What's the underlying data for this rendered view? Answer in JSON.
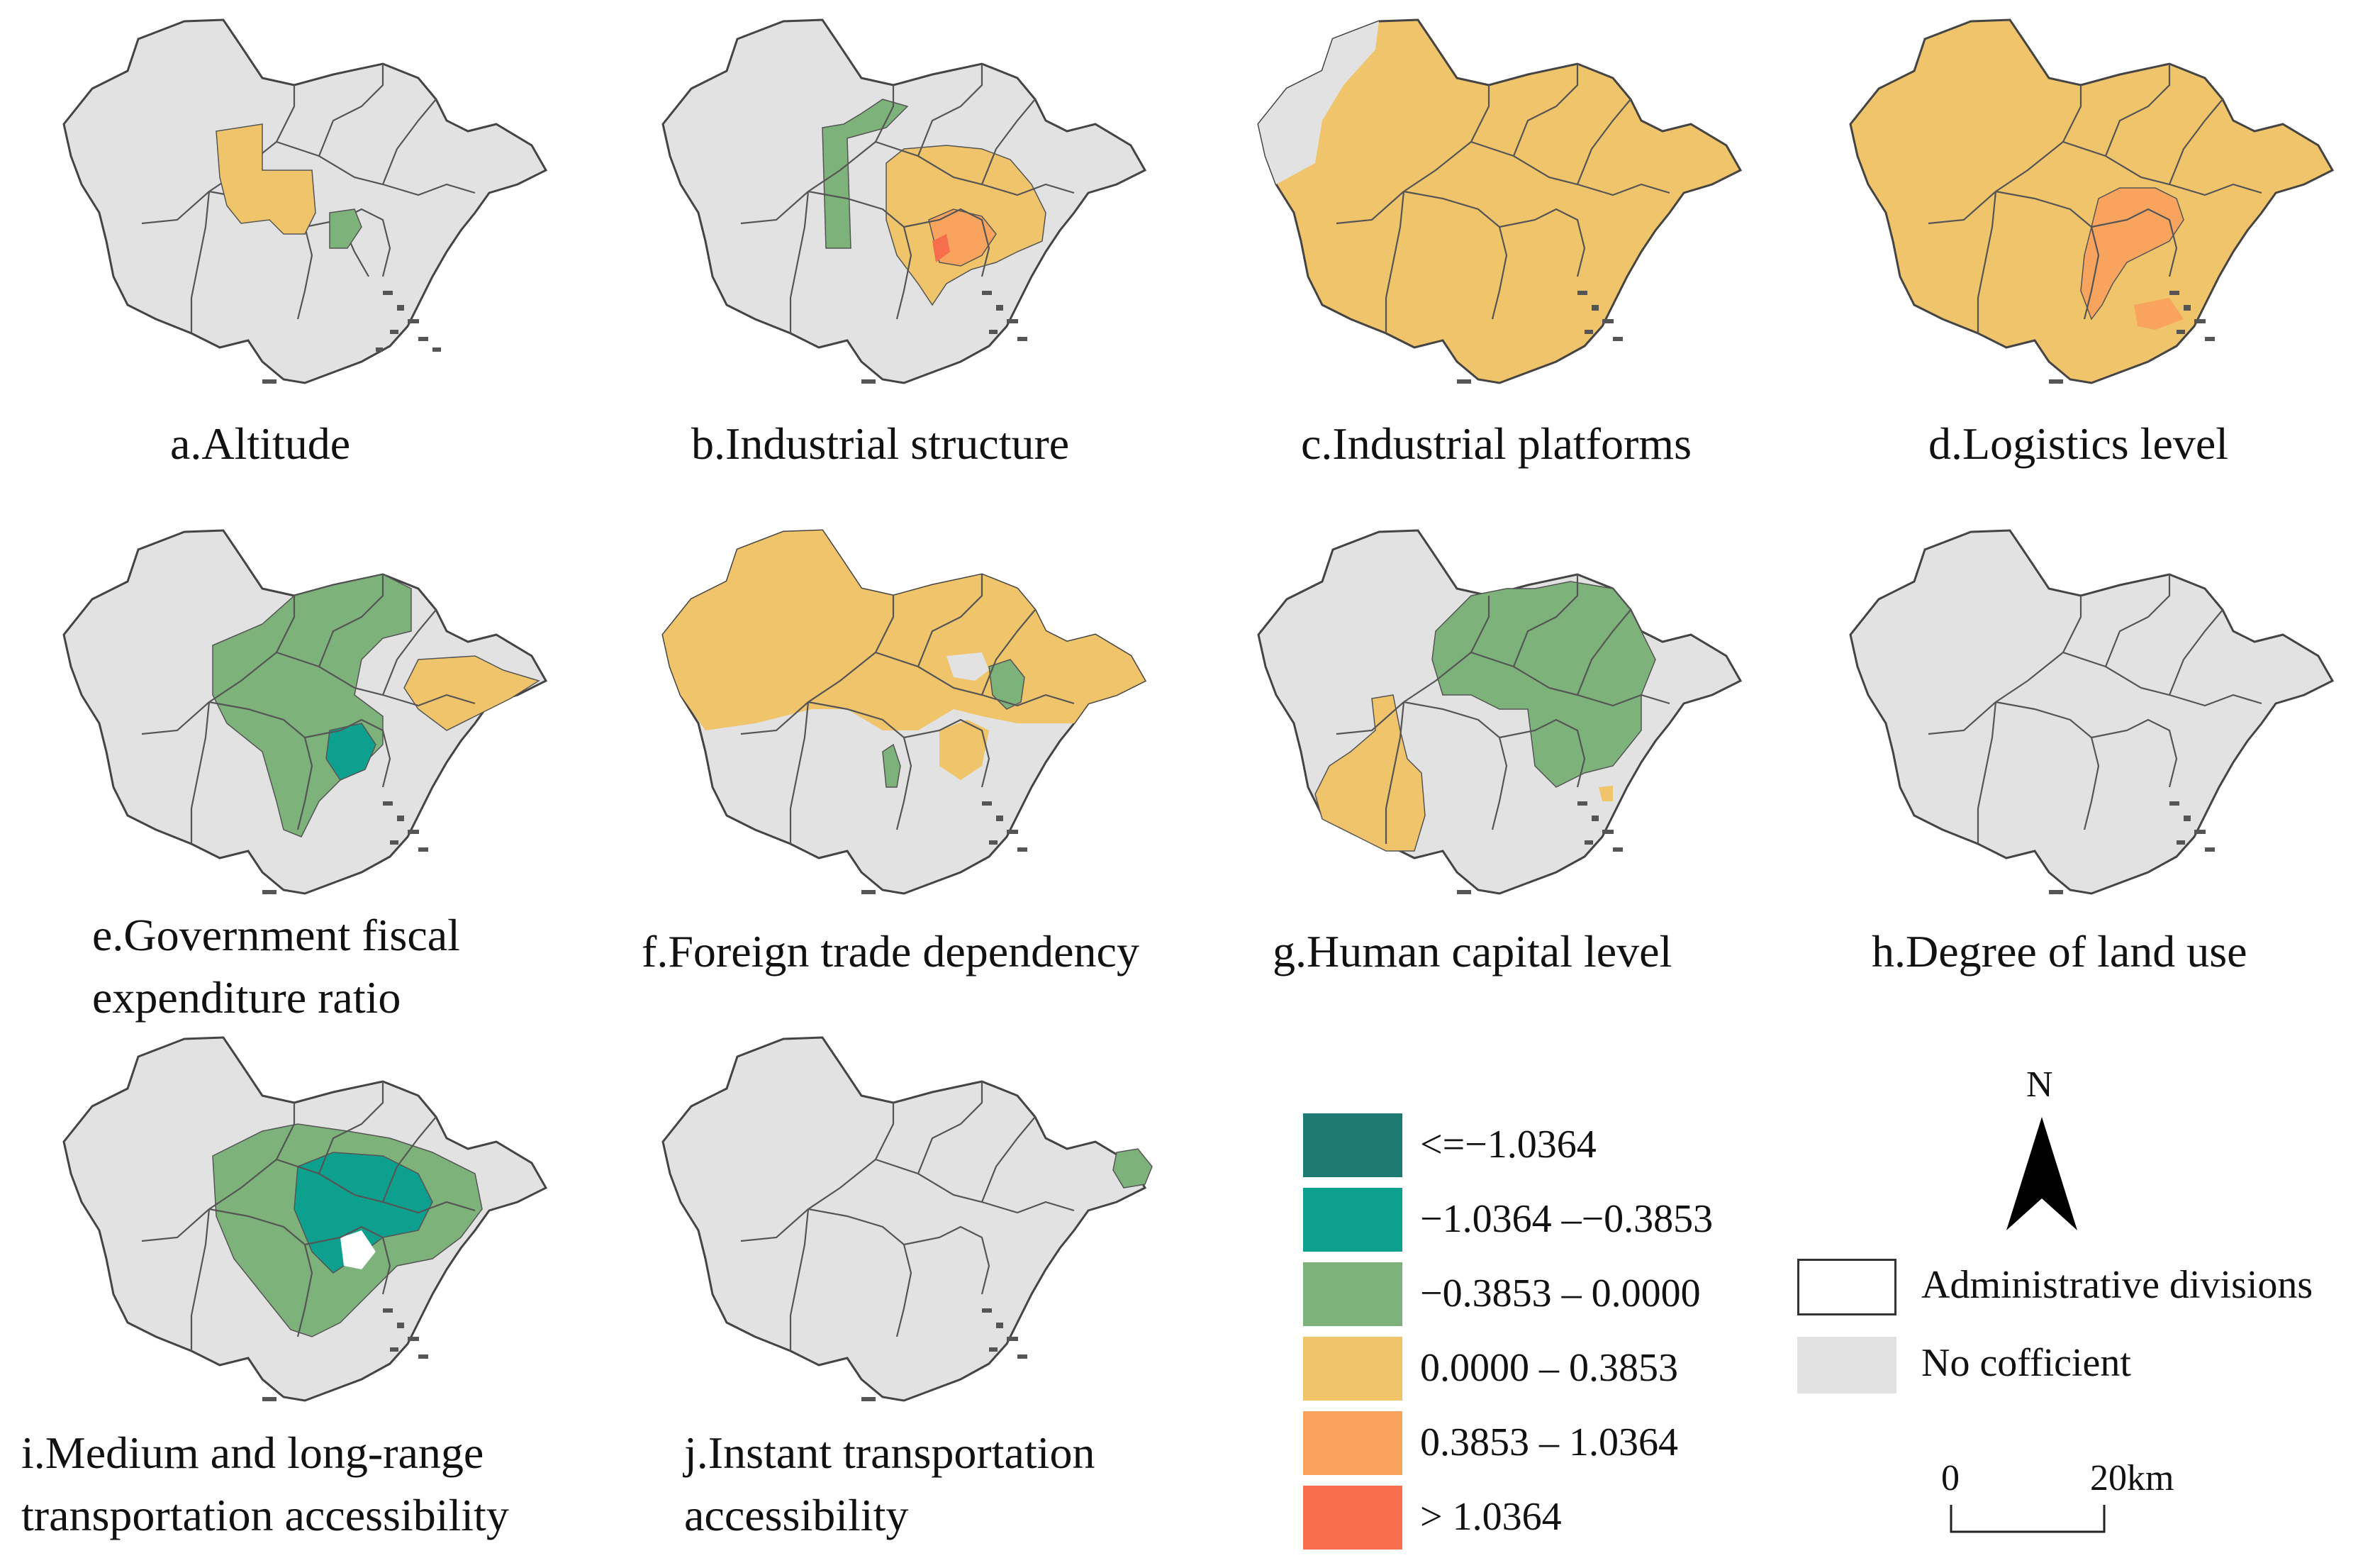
{
  "panels": [
    {
      "id": "a",
      "caption": [
        "a.Altitude"
      ]
    },
    {
      "id": "b",
      "caption": [
        "b.Industrial structure"
      ]
    },
    {
      "id": "c",
      "caption": [
        "c.Industrial platforms"
      ]
    },
    {
      "id": "d",
      "caption": [
        "d.Logistics level"
      ]
    },
    {
      "id": "e",
      "caption": [
        "e.Government fiscal",
        "expenditure ratio"
      ]
    },
    {
      "id": "f",
      "caption": [
        "f.Foreign trade dependency"
      ]
    },
    {
      "id": "g",
      "caption": [
        "g.Human capital level"
      ]
    },
    {
      "id": "h",
      "caption": [
        "h.Degree of land use"
      ]
    },
    {
      "id": "i",
      "caption": [
        "i.Medium and long-range",
        "transportation accessibility"
      ]
    },
    {
      "id": "j",
      "caption": [
        "j.Instant transportation",
        "accessibility"
      ]
    }
  ],
  "legend": {
    "classes": [
      {
        "label": "<=−1.0364",
        "color": "#1c7a73"
      },
      {
        "label": "−1.0364 –−0.3853",
        "color": "#0ea08f"
      },
      {
        "label": "−0.3853 – 0.0000",
        "color": "#7db27a"
      },
      {
        "label": "0.0000 – 0.3853",
        "color": "#efc46a"
      },
      {
        "label": "0.3853 – 1.0364",
        "color": "#f8a35e"
      },
      {
        "label": "> 1.0364",
        "color": "#f66e4c"
      }
    ],
    "admin_label": "Administrative divisions",
    "nocoef_label": "No cofficient",
    "nocoef_color": "#e2e2e2"
  },
  "north_label": "N",
  "scale": {
    "start": "0",
    "end": "20",
    "unit": "km"
  },
  "colors": {
    "outline": "#444444",
    "island": "#555555"
  }
}
